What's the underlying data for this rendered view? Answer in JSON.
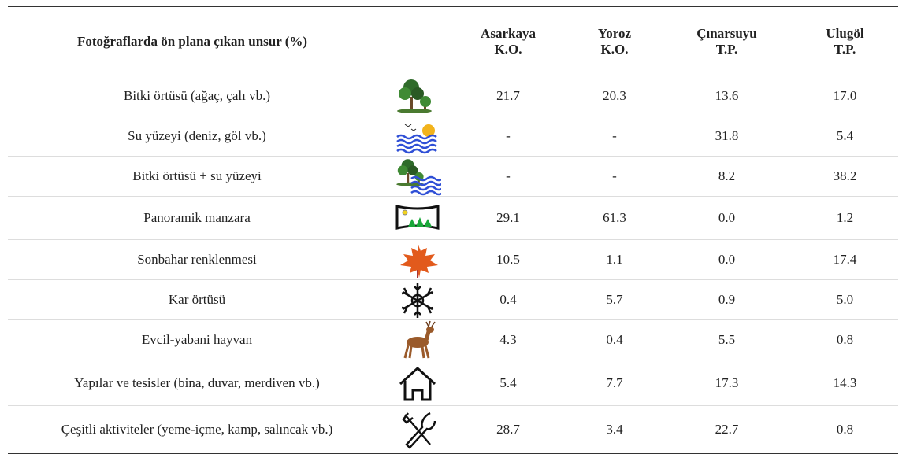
{
  "table": {
    "header": {
      "title": "Fotoğraflarda ön plana çıkan unsur (%)",
      "columns": [
        {
          "name": "Asarkaya",
          "type": "K.O."
        },
        {
          "name": "Yoroz",
          "type": "K.O."
        },
        {
          "name": "Çınarsuyu",
          "type": "T.P."
        },
        {
          "name": "Ulugöl",
          "type": "T.P."
        }
      ]
    },
    "rows": [
      {
        "label": "Bitki örtüsü (ağaç, çalı vb.)",
        "values": [
          "21.7",
          "20.3",
          "13.6",
          "17.0"
        ]
      },
      {
        "label": "Su yüzeyi (deniz, göl vb.)",
        "values": [
          "-",
          "-",
          "31.8",
          "5.4"
        ]
      },
      {
        "label": "Bitki örtüsü + su yüzeyi",
        "values": [
          "-",
          "-",
          "8.2",
          "38.2"
        ]
      },
      {
        "label": "Panoramik manzara",
        "values": [
          "29.1",
          "61.3",
          "0.0",
          "1.2"
        ]
      },
      {
        "label": "Sonbahar renklenmesi",
        "values": [
          "10.5",
          "1.1",
          "0.0",
          "17.4"
        ]
      },
      {
        "label": "Kar örtüsü",
        "values": [
          "0.4",
          "5.7",
          "0.9",
          "5.0"
        ]
      },
      {
        "label": "Evcil-yabani hayvan",
        "values": [
          "4.3",
          "0.4",
          "5.5",
          "0.8"
        ]
      },
      {
        "label": "Yapılar ve tesisler (bina, duvar, merdiven vb.)",
        "values": [
          "5.4",
          "7.7",
          "17.3",
          "14.3"
        ]
      },
      {
        "label": "Çeşitli aktiviteler (yeme-içme, kamp, salıncak vb.)",
        "values": [
          "28.7",
          "3.4",
          "22.7",
          "0.8"
        ]
      }
    ]
  }
}
